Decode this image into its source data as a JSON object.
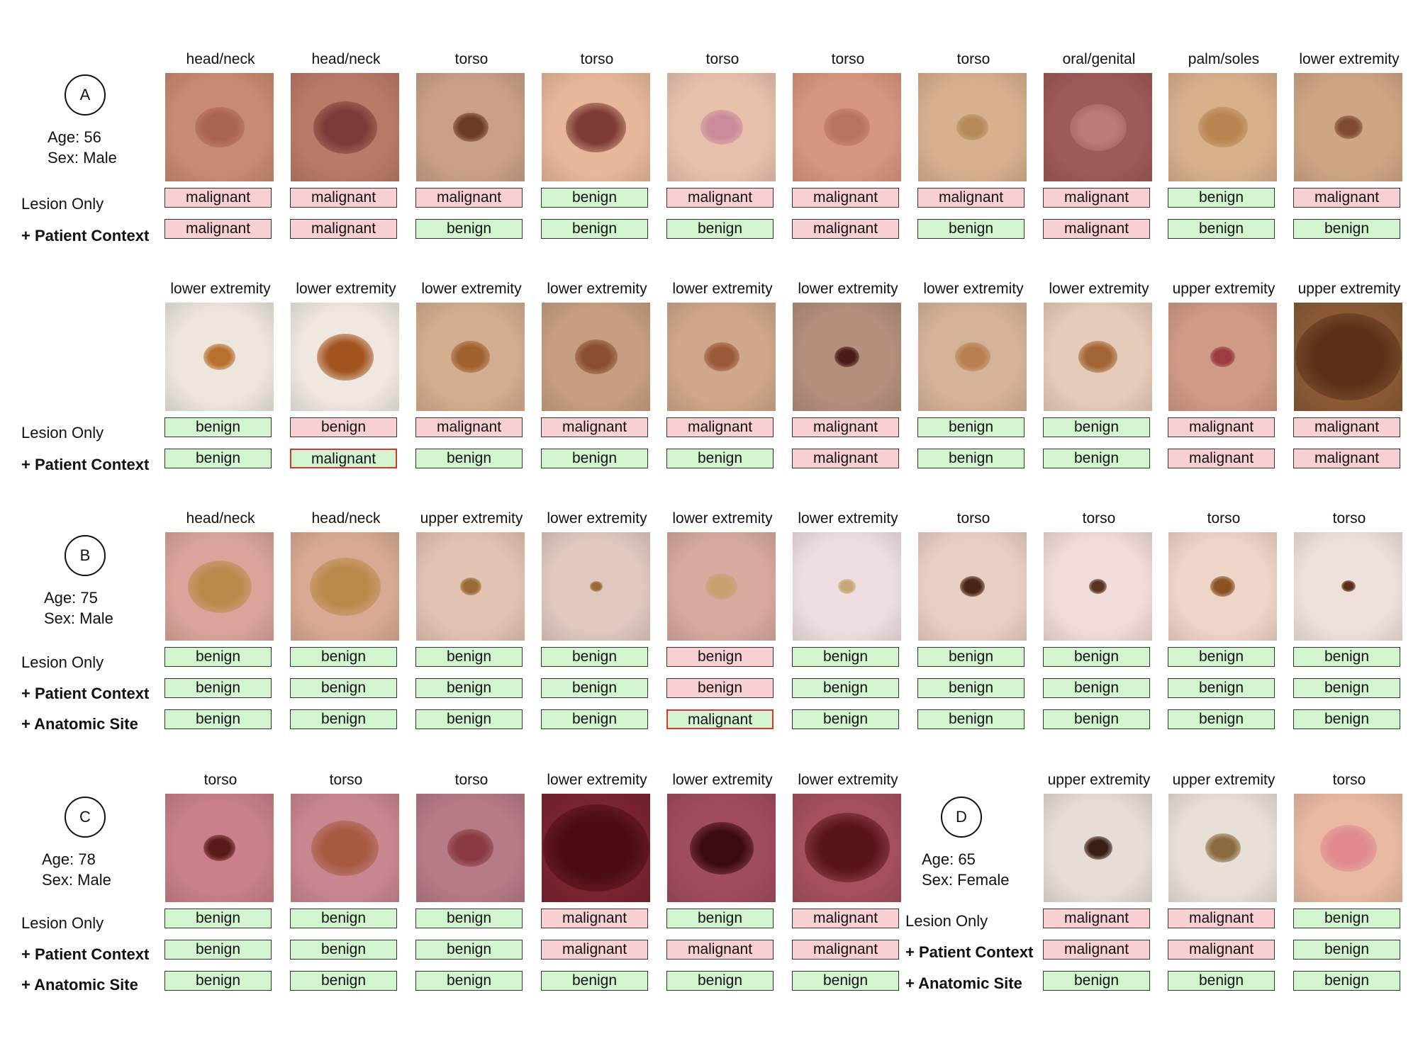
{
  "row_labels": {
    "lesion_only": "Lesion Only",
    "patient_context": "+ Patient Context",
    "anatomic_site": "+ Anatomic Site"
  },
  "patients": [
    {
      "id": "A",
      "age": "Age: 56",
      "sex": "Sex: Male"
    },
    {
      "id": "B",
      "age": "Age: 75",
      "sex": "Sex: Male"
    },
    {
      "id": "C",
      "age": "Age: 78",
      "sex": "Sex: Male"
    },
    {
      "id": "D",
      "age": "Age: 65",
      "sex": "Sex: Female"
    }
  ],
  "rows": [
    {
      "sites": [
        "head/neck",
        "head/neck",
        "torso",
        "torso",
        "torso",
        "torso",
        "torso",
        "oral/genital",
        "palm/soles",
        "lower extremity"
      ],
      "lesion_only": [
        "malignant",
        "malignant",
        "malignant",
        "benign",
        "malignant",
        "malignant",
        "malignant",
        "malignant",
        "benign",
        "malignant"
      ],
      "patient_context": [
        "malignant",
        "malignant",
        "benign",
        "benign",
        "benign",
        "malignant",
        "benign",
        "malignant",
        "benign",
        "benign"
      ],
      "highlight": []
    },
    {
      "sites": [
        "lower extremity",
        "lower extremity",
        "lower extremity",
        "lower extremity",
        "lower extremity",
        "lower extremity",
        "lower extremity",
        "lower extremity",
        "upper extremity",
        "upper extremity"
      ],
      "lesion_only": [
        "benign",
        "benign",
        "malignant",
        "malignant",
        "malignant",
        "malignant",
        "benign",
        "benign",
        "malignant",
        "malignant"
      ],
      "patient_context": [
        "benign",
        "malignant",
        "benign",
        "benign",
        "benign",
        "malignant",
        "benign",
        "benign",
        "malignant",
        "malignant"
      ],
      "lesion_only_colors": [
        "benign",
        "malignant",
        "malignant",
        "malignant",
        "malignant",
        "malignant",
        "benign",
        "benign",
        "malignant",
        "malignant"
      ],
      "patient_context_colors": [
        "benign",
        "benign",
        "benign",
        "benign",
        "benign",
        "malignant",
        "benign",
        "benign",
        "malignant",
        "malignant"
      ],
      "highlight": [
        "patient_context:1"
      ]
    },
    {
      "sites": [
        "head/neck",
        "head/neck",
        "upper extremity",
        "lower extremity",
        "lower extremity",
        "lower extremity",
        "torso",
        "torso",
        "torso",
        "torso"
      ],
      "lesion_only": [
        "benign",
        "benign",
        "benign",
        "benign",
        "benign",
        "benign",
        "benign",
        "benign",
        "benign",
        "benign"
      ],
      "patient_context": [
        "benign",
        "benign",
        "benign",
        "benign",
        "benign",
        "benign",
        "benign",
        "benign",
        "benign",
        "benign"
      ],
      "anatomic_site": [
        "benign",
        "benign",
        "benign",
        "benign",
        "malignant",
        "benign",
        "benign",
        "benign",
        "benign",
        "benign"
      ],
      "lesion_only_colors": [
        "benign",
        "benign",
        "benign",
        "benign",
        "malignant",
        "benign",
        "benign",
        "benign",
        "benign",
        "benign"
      ],
      "patient_context_colors": [
        "benign",
        "benign",
        "benign",
        "benign",
        "malignant",
        "benign",
        "benign",
        "benign",
        "benign",
        "benign"
      ],
      "anatomic_site_colors": [
        "benign",
        "benign",
        "benign",
        "benign",
        "benign",
        "benign",
        "benign",
        "benign",
        "benign",
        "benign"
      ],
      "highlight": [
        "anatomic_site:4"
      ]
    },
    {
      "sites": [
        "torso",
        "torso",
        "torso",
        "lower extremity",
        "lower extremity",
        "lower extremity"
      ],
      "lesion_only": [
        "benign",
        "benign",
        "benign",
        "malignant",
        "benign",
        "malignant"
      ],
      "patient_context": [
        "benign",
        "benign",
        "benign",
        "malignant",
        "malignant",
        "malignant"
      ],
      "anatomic_site": [
        "benign",
        "benign",
        "benign",
        "benign",
        "benign",
        "benign"
      ]
    },
    {
      "sites": [
        "upper extremity",
        "upper extremity",
        "torso"
      ],
      "lesion_only": [
        "malignant",
        "malignant",
        "benign"
      ],
      "patient_context": [
        "malignant",
        "malignant",
        "benign"
      ],
      "anatomic_site": [
        "benign",
        "benign",
        "benign"
      ]
    }
  ],
  "lesion_colors": {
    "skin_tones": [
      "#c98a72",
      "#b97a68",
      "#caa089",
      "#e7b79a",
      "#e8c1ad",
      "#d8957e",
      "#d7b08e",
      "#9e5a56",
      "#d9b08c",
      "#cfa684",
      "#ece6dc",
      "#eee8e0",
      "#d2ad8e",
      "#c79f80",
      "#cfa789",
      "#b38f7c",
      "#d5b399",
      "#e7cbb9",
      "#cf9a86",
      "#8a5a35",
      "#d9a59b",
      "#d8aa94",
      "#e2c2b0",
      "#e0c8bf",
      "#d7a99f",
      "#efdee0",
      "#e9cfc3",
      "#f0dcd8",
      "#efd4c8",
      "#f0e0da",
      "#c9808a",
      "#c98690",
      "#b77a87",
      "#7a2430",
      "#a04b5e",
      "#a6505e",
      "#e5ddd6",
      "#e7e0d6",
      "#e9b9a2"
    ],
    "lesion_tones": [
      "#a96450",
      "#7a3c38",
      "#6a3a22",
      "#7d3b34",
      "#c98a9a",
      "#b87260",
      "#b78a5c",
      "#bb7b78",
      "#b88550",
      "#7f4a30",
      "#b8702e",
      "#a35520",
      "#a0612f",
      "#8a4f32",
      "#9a5a3a",
      "#4a1c18",
      "#b88051",
      "#a36536",
      "#9a3c40",
      "#5a3018",
      "#b88a4a",
      "#b88a4a",
      "#9a6a34",
      "#9a6a34",
      "#c9a070",
      "#c9a678",
      "#4a2414",
      "#5a3420",
      "#8a5224",
      "#5a3018",
      "#5a1a1a",
      "#a85a40",
      "#8a3a40",
      "#4a0c12",
      "#3a0a10",
      "#5a1418",
      "#3a2014",
      "#8a6a40",
      "#e08a8e"
    ]
  }
}
